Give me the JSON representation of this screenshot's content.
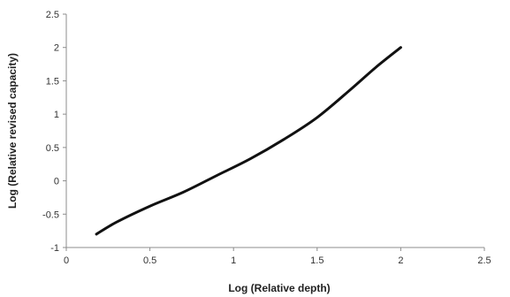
{
  "chart_data": {
    "type": "line",
    "title": "",
    "xlabel": "Log (Relative depth)",
    "ylabel": "Log (Relative revised capacity)",
    "xlim": [
      0,
      2.5
    ],
    "ylim": [
      -1,
      2.5
    ],
    "xticks": [
      0,
      0.5,
      1,
      1.5,
      2,
      2.5
    ],
    "xtick_labels": [
      "0",
      "0.5",
      "1",
      "1.5",
      "2",
      "2.5"
    ],
    "yticks": [
      -1,
      -0.5,
      0,
      0.5,
      1,
      1.5,
      2,
      2.5
    ],
    "ytick_labels": [
      "-1",
      "-0.5",
      "0",
      "0.5",
      "1",
      "1.5",
      "2",
      "2.5"
    ],
    "grid": false,
    "legend": "none",
    "line_color": "#111111",
    "series": [
      {
        "x": [
          0.18,
          0.3,
          0.5,
          0.7,
          0.9,
          1.1,
          1.3,
          1.5,
          1.7,
          1.85,
          2.0
        ],
        "y": [
          -0.8,
          -0.62,
          -0.38,
          -0.17,
          0.08,
          0.33,
          0.62,
          0.95,
          1.37,
          1.7,
          2.0
        ]
      }
    ]
  }
}
